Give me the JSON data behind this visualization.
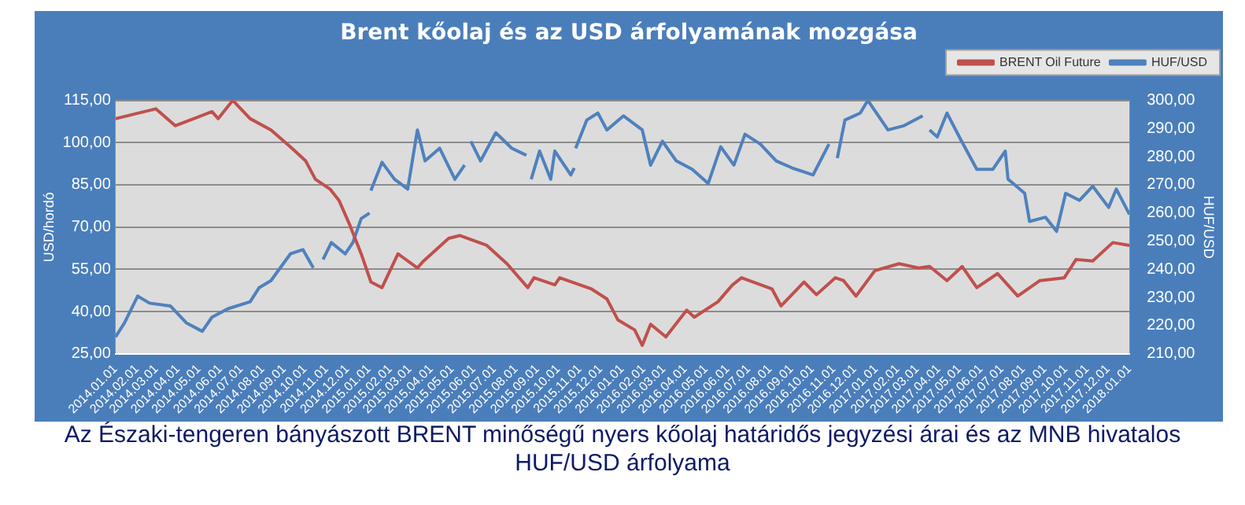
{
  "chart_data": {
    "type": "line",
    "title": "Brent kőolaj és az USD árfolyamának mozgása",
    "ylabel": "USD/hordó",
    "y2label": "HUF/USD",
    "annotations": [
      "Az Északi-tengeren bányászott BRENT minőségű nyers kőolaj határidős jegyzési árai és az MNB hivatalos HUF/USD árfolyama"
    ],
    "xlim": [
      "2014-01-01",
      "2018-01-01"
    ],
    "xticks": [
      {
        "value": "2014-01-01",
        "label": "2014.01.01"
      },
      {
        "value": "2014-02-01",
        "label": "2014.02.01"
      },
      {
        "value": "2014-03-01",
        "label": "2014.03.01"
      },
      {
        "value": "2014-04-01",
        "label": "2014.04.01"
      },
      {
        "value": "2014-05-01",
        "label": "2014.05.01"
      },
      {
        "value": "2014-06-01",
        "label": "2014.06.01"
      },
      {
        "value": "2014-07-01",
        "label": "2014.07.01"
      },
      {
        "value": "2014-08-01",
        "label": "2014.08.01"
      },
      {
        "value": "2014-09-01",
        "label": "2014.09.01"
      },
      {
        "value": "2014-10-01",
        "label": "2014.10.01"
      },
      {
        "value": "2014-11-01",
        "label": "2014.11.01"
      },
      {
        "value": "2014-12-01",
        "label": "2014.12.01"
      },
      {
        "value": "2015-01-01",
        "label": "2015.01.01"
      },
      {
        "value": "2015-02-01",
        "label": "2015.02.01"
      },
      {
        "value": "2015-03-01",
        "label": "2015.03.01"
      },
      {
        "value": "2015-04-01",
        "label": "2015.04.01"
      },
      {
        "value": "2015-05-01",
        "label": "2015.05.01"
      },
      {
        "value": "2015-06-01",
        "label": "2015.06.01"
      },
      {
        "value": "2015-07-01",
        "label": "2015.07.01"
      },
      {
        "value": "2015-08-01",
        "label": "2015.08.01"
      },
      {
        "value": "2015-09-01",
        "label": "2015.09.01"
      },
      {
        "value": "2015-10-01",
        "label": "2015.10.01"
      },
      {
        "value": "2015-11-01",
        "label": "2015.11.01"
      },
      {
        "value": "2015-12-01",
        "label": "2015.12.01"
      },
      {
        "value": "2016-01-01",
        "label": "2016.01.01"
      },
      {
        "value": "2016-02-01",
        "label": "2016.02.01"
      },
      {
        "value": "2016-03-01",
        "label": "2016.03.01"
      },
      {
        "value": "2016-04-01",
        "label": "2016.04.01"
      },
      {
        "value": "2016-05-01",
        "label": "2016.05.01"
      },
      {
        "value": "2016-06-01",
        "label": "2016.06.01"
      },
      {
        "value": "2016-07-01",
        "label": "2016.07.01"
      },
      {
        "value": "2016-08-01",
        "label": "2016.08.01"
      },
      {
        "value": "2016-09-01",
        "label": "2016.09.01"
      },
      {
        "value": "2016-10-01",
        "label": "2016.10.01"
      },
      {
        "value": "2016-11-01",
        "label": "2016.11.01"
      },
      {
        "value": "2016-12-01",
        "label": "2016.12.01"
      },
      {
        "value": "2017-01-01",
        "label": "2017.01.01"
      },
      {
        "value": "2017-02-01",
        "label": "2017.02.01"
      },
      {
        "value": "2017-03-01",
        "label": "2017.03.01"
      },
      {
        "value": "2017-04-01",
        "label": "2017.04.01"
      },
      {
        "value": "2017-05-01",
        "label": "2017.05.01"
      },
      {
        "value": "2017-06-01",
        "label": "2017.06.01"
      },
      {
        "value": "2017-07-01",
        "label": "2017.07.01"
      },
      {
        "value": "2017-08-01",
        "label": "2017.08.01"
      },
      {
        "value": "2017-09-01",
        "label": "2017.09.01"
      },
      {
        "value": "2017-10-01",
        "label": "2017.10.01"
      },
      {
        "value": "2017-11-01",
        "label": "2017.11.01"
      },
      {
        "value": "2017-12-01",
        "label": "2017.12.01"
      },
      {
        "value": "2018-01-01",
        "label": "2018.01.01"
      }
    ],
    "ylim": [
      25,
      115
    ],
    "yticks": [
      {
        "value": 25,
        "label": "25,00"
      },
      {
        "value": 40,
        "label": "40,00"
      },
      {
        "value": 55,
        "label": "55,00"
      },
      {
        "value": 70,
        "label": "70,00"
      },
      {
        "value": 85,
        "label": "85,00"
      },
      {
        "value": 100,
        "label": "100,00"
      },
      {
        "value": 115,
        "label": "115,00"
      }
    ],
    "y2lim": [
      210,
      300
    ],
    "y2ticks": [
      {
        "value": 210,
        "label": "210,00"
      },
      {
        "value": 220,
        "label": "220,00"
      },
      {
        "value": 230,
        "label": "230,00"
      },
      {
        "value": 240,
        "label": "240,00"
      },
      {
        "value": 250,
        "label": "250,00"
      },
      {
        "value": 260,
        "label": "260,00"
      },
      {
        "value": 270,
        "label": "270,00"
      },
      {
        "value": 280,
        "label": "280,00"
      },
      {
        "value": 290,
        "label": "290,00"
      },
      {
        "value": 300,
        "label": "300,00"
      }
    ],
    "grid": "y",
    "legend": "top right",
    "marker": "none",
    "line_style": "solid",
    "series": [
      {
        "name": "BRENT Oil Future",
        "color": "#c0504d",
        "axis": "y",
        "x": [
          "2014-01-01",
          "2014-02-28",
          "2014-03-28",
          "2014-05-20",
          "2014-05-29",
          "2014-06-19",
          "2014-07-14",
          "2014-08-13",
          "2014-09-10",
          "2014-10-02",
          "2014-10-16",
          "2014-11-06",
          "2014-11-19",
          "2014-12-05",
          "2014-12-21",
          "2015-01-04",
          "2015-01-20",
          "2015-02-12",
          "2015-03-12",
          "2015-03-21",
          "2015-04-26",
          "2015-05-12",
          "2015-06-20",
          "2015-07-19",
          "2015-08-18",
          "2015-08-27",
          "2015-09-26",
          "2015-10-03",
          "2015-11-18",
          "2015-12-10",
          "2015-12-26",
          "2016-01-19",
          "2016-01-30",
          "2016-02-11",
          "2016-03-04",
          "2016-04-03",
          "2016-04-14",
          "2016-05-18",
          "2016-06-08",
          "2016-06-21",
          "2016-08-04",
          "2016-08-17",
          "2016-09-19",
          "2016-10-07",
          "2016-11-03",
          "2016-11-15",
          "2016-12-03",
          "2016-12-30",
          "2017-02-03",
          "2017-03-03",
          "2017-03-19",
          "2017-04-13",
          "2017-05-05",
          "2017-05-26",
          "2017-06-25",
          "2017-07-24",
          "2017-08-25",
          "2017-09-29",
          "2017-10-16",
          "2017-11-09",
          "2017-12-08",
          "2018-01-01"
        ],
        "values": [
          108.5,
          112,
          106,
          111,
          108.5,
          115,
          108.5,
          104.5,
          98.5,
          93.5,
          87,
          83.5,
          79.5,
          70.5,
          60.5,
          50.5,
          48.5,
          60.5,
          55.5,
          58,
          66,
          67,
          63.5,
          57,
          48.5,
          52,
          49.5,
          52,
          48,
          44.5,
          37,
          33.5,
          28,
          35.5,
          31,
          40.5,
          38,
          43.5,
          49.5,
          52,
          48,
          42,
          50.5,
          46,
          52,
          51,
          45.5,
          54.5,
          57,
          55.5,
          56,
          51,
          56,
          48.5,
          53.5,
          45.5,
          51,
          52,
          58.5,
          58,
          64.5,
          63.5
        ]
      },
      {
        "name": "HUF/USD",
        "color": "#4f81bd",
        "axis": "y2",
        "x": [
          "2014-01-01",
          "2014-01-14",
          "2014-02-02",
          "2014-02-19",
          "2014-03-21",
          "2014-04-13",
          "2014-05-06",
          "2014-05-20",
          "2014-06-12",
          "2014-07-14",
          "2014-07-27",
          "2014-08-13",
          "2014-09-10",
          "2014-09-28",
          "2014-10-13",
          "2014-10-15",
          "2014-10-27",
          "2014-11-08",
          "2014-11-28",
          "2014-12-09",
          "2014-12-21",
          "2015-01-02",
          "2015-01-03",
          "2015-01-04",
          "2015-01-20",
          "2015-02-07",
          "2015-02-26",
          "2015-03-12",
          "2015-03-23",
          "2015-04-13",
          "2015-05-05",
          "2015-05-19",
          "2015-05-21",
          "2015-05-28",
          "2015-06-11",
          "2015-07-03",
          "2015-07-26",
          "2015-08-16",
          "2015-08-17",
          "2015-08-23",
          "2015-09-04",
          "2015-09-20",
          "2015-09-26",
          "2015-10-19",
          "2015-10-24",
          "2015-10-25",
          "2015-10-26",
          "2015-11-11",
          "2015-11-27",
          "2015-12-10",
          "2016-01-03",
          "2016-01-30",
          "2016-02-11",
          "2016-02-28",
          "2016-03-19",
          "2016-04-11",
          "2016-05-04",
          "2016-05-22",
          "2016-06-10",
          "2016-06-26",
          "2016-07-18",
          "2016-08-10",
          "2016-09-02",
          "2016-10-02",
          "2016-10-25",
          "2016-10-28",
          "2016-11-06",
          "2016-11-17",
          "2016-12-09",
          "2016-12-20",
          "2017-01-18",
          "2017-02-10",
          "2017-03-09",
          "2017-03-11",
          "2017-03-19",
          "2017-03-30",
          "2017-04-13",
          "2017-05-03",
          "2017-05-26",
          "2017-06-18",
          "2017-07-06",
          "2017-07-10",
          "2017-08-03",
          "2017-08-10",
          "2017-09-02",
          "2017-09-18",
          "2017-10-01",
          "2017-10-21",
          "2017-11-09",
          "2017-12-02",
          "2017-12-13",
          "2018-01-01"
        ],
        "values": [
          216,
          221,
          230.5,
          228,
          227,
          221,
          218,
          223,
          226,
          228.5,
          233.5,
          236,
          245.5,
          247,
          240.5,
          null,
          243.5,
          249.5,
          245.5,
          249.5,
          258,
          260,
          null,
          268,
          278,
          272,
          268.5,
          289.5,
          278.5,
          283,
          272,
          277,
          null,
          285.5,
          278.5,
          288.5,
          283,
          280.5,
          null,
          272,
          282,
          272,
          282,
          273.5,
          276,
          null,
          283,
          293,
          295.5,
          289.5,
          294.5,
          289.5,
          277,
          285.5,
          278.5,
          275.5,
          270.5,
          283.5,
          277,
          288,
          284.5,
          278.5,
          276,
          273.5,
          284.5,
          null,
          279.5,
          293,
          295.5,
          300,
          289.5,
          291,
          294.5,
          null,
          289.5,
          287,
          295.5,
          286,
          275.5,
          275.5,
          282,
          272,
          267,
          257,
          258.5,
          253.5,
          267,
          264.5,
          269.5,
          262,
          268.5,
          259.5
        ]
      }
    ]
  }
}
